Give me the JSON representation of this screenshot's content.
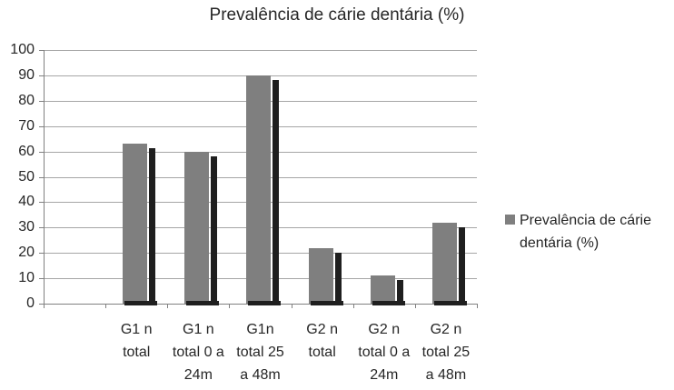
{
  "chart_data": {
    "type": "bar",
    "title": "Prevalência de cárie dentária (%)",
    "categories": [
      "G1 n total",
      "G1 n total 0 a 24m",
      "G1n total 25 a 48m",
      "G2 n total",
      "G2 n total 0 a 24m",
      "G2 n total 25 a 48m"
    ],
    "category_lines": [
      [
        "G1 n",
        "total"
      ],
      [
        "G1 n",
        "total 0 a",
        "24m"
      ],
      [
        "G1n",
        "total 25",
        "a 48m"
      ],
      [
        "G2 n",
        "total"
      ],
      [
        "G2 n",
        "total 0 a",
        "24m"
      ],
      [
        "G2 n",
        "total 25",
        "a 48m"
      ]
    ],
    "series": [
      {
        "name": "Prevalência de cárie dentária (%)",
        "values": [
          63,
          60,
          90,
          22,
          11,
          32
        ]
      }
    ],
    "xlabel": "",
    "ylabel": "",
    "ylim": [
      0,
      100
    ],
    "yticks": [
      0,
      10,
      20,
      30,
      40,
      50,
      60,
      70,
      80,
      90,
      100
    ],
    "grid": "horizontal",
    "bar_style": "flat gray bars with dark drop shadow offset right and down",
    "legend": {
      "position": "right",
      "label": "Prevalência de cárie dentária (%)"
    },
    "colors": {
      "bar": "#7f7f7f",
      "bar_shadow": "#1f1f1f",
      "gridline": "#a6a6a6",
      "axis": "#808080",
      "text": "#262626",
      "background": "#ffffff"
    }
  }
}
